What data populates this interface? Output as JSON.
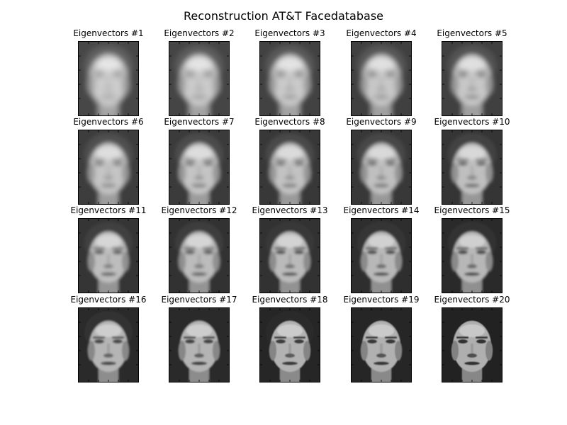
{
  "title": "Reconstruction AT&T Facedatabase",
  "panels": [
    {
      "label": "Eigenvectors #1",
      "eigenvectors": 1
    },
    {
      "label": "Eigenvectors #2",
      "eigenvectors": 2
    },
    {
      "label": "Eigenvectors #3",
      "eigenvectors": 3
    },
    {
      "label": "Eigenvectors #4",
      "eigenvectors": 4
    },
    {
      "label": "Eigenvectors #5",
      "eigenvectors": 5
    },
    {
      "label": "Eigenvectors #6",
      "eigenvectors": 6
    },
    {
      "label": "Eigenvectors #7",
      "eigenvectors": 7
    },
    {
      "label": "Eigenvectors #8",
      "eigenvectors": 8
    },
    {
      "label": "Eigenvectors #9",
      "eigenvectors": 9
    },
    {
      "label": "Eigenvectors #10",
      "eigenvectors": 10
    },
    {
      "label": "Eigenvectors #11",
      "eigenvectors": 11
    },
    {
      "label": "Eigenvectors #12",
      "eigenvectors": 12
    },
    {
      "label": "Eigenvectors #13",
      "eigenvectors": 13
    },
    {
      "label": "Eigenvectors #14",
      "eigenvectors": 14
    },
    {
      "label": "Eigenvectors #15",
      "eigenvectors": 15
    },
    {
      "label": "Eigenvectors #16",
      "eigenvectors": 16
    },
    {
      "label": "Eigenvectors #17",
      "eigenvectors": 17
    },
    {
      "label": "Eigenvectors #18",
      "eigenvectors": 18
    },
    {
      "label": "Eigenvectors #19",
      "eigenvectors": 19
    },
    {
      "label": "Eigenvectors #20",
      "eigenvectors": 20
    }
  ]
}
